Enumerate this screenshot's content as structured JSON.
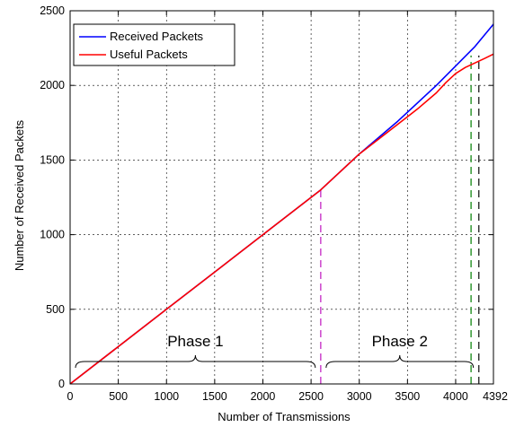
{
  "chart_data": {
    "type": "line",
    "title": "",
    "xlabel": "Number of Transmissions",
    "ylabel": "Number of Received Packets",
    "xlim": [
      0,
      4392
    ],
    "ylim": [
      0,
      2500
    ],
    "grid": true,
    "legend_position": "top-left",
    "x_ticks": [
      {
        "value": 0,
        "label": "0"
      },
      {
        "value": 500,
        "label": "500"
      },
      {
        "value": 1000,
        "label": "1000"
      },
      {
        "value": 1500,
        "label": "1500"
      },
      {
        "value": 2000,
        "label": "2000"
      },
      {
        "value": 2500,
        "label": "2500"
      },
      {
        "value": 3000,
        "label": "3000"
      },
      {
        "value": 3500,
        "label": "3500"
      },
      {
        "value": 4000,
        "label": "4000"
      },
      {
        "value": 4392,
        "label": "4392"
      }
    ],
    "y_ticks": [
      {
        "value": 0,
        "label": "0"
      },
      {
        "value": 500,
        "label": "500"
      },
      {
        "value": 1000,
        "label": "1000"
      },
      {
        "value": 1500,
        "label": "1500"
      },
      {
        "value": 2000,
        "label": "2000"
      },
      {
        "value": 2500,
        "label": "2500"
      }
    ],
    "series": [
      {
        "name": "Received Packets",
        "color": "#0000ff",
        "x": [
          0,
          500,
          1000,
          1500,
          2000,
          2600,
          3000,
          3400,
          3800,
          4200,
          4392
        ],
        "y": [
          0,
          250,
          500,
          750,
          1000,
          1300,
          1540,
          1760,
          2000,
          2260,
          2410
        ]
      },
      {
        "name": "Useful Packets",
        "color": "#ff0000",
        "x": [
          0,
          500,
          1000,
          1500,
          2000,
          2600,
          3000,
          3200,
          3400,
          3600,
          3800,
          3900,
          4000,
          4100,
          4200,
          4300,
          4392
        ],
        "y": [
          0,
          250,
          500,
          750,
          1000,
          1300,
          1540,
          1640,
          1740,
          1840,
          1950,
          2020,
          2080,
          2120,
          2150,
          2180,
          2210
        ]
      }
    ],
    "vertical_markers": [
      {
        "x": 2600,
        "y_top": 1300,
        "color": "#cc44cc",
        "style": "dashed"
      },
      {
        "x": 4160,
        "y_top": 2200,
        "color": "#339933",
        "style": "dashed"
      },
      {
        "x": 4240,
        "y_top": 2200,
        "color": "#333333",
        "style": "dashed"
      }
    ],
    "annotations": [
      {
        "text": "Phase 1",
        "x_start": 0,
        "x_end": 2600
      },
      {
        "text": "Phase 2",
        "x_start": 2600,
        "x_end": 4240
      }
    ]
  }
}
